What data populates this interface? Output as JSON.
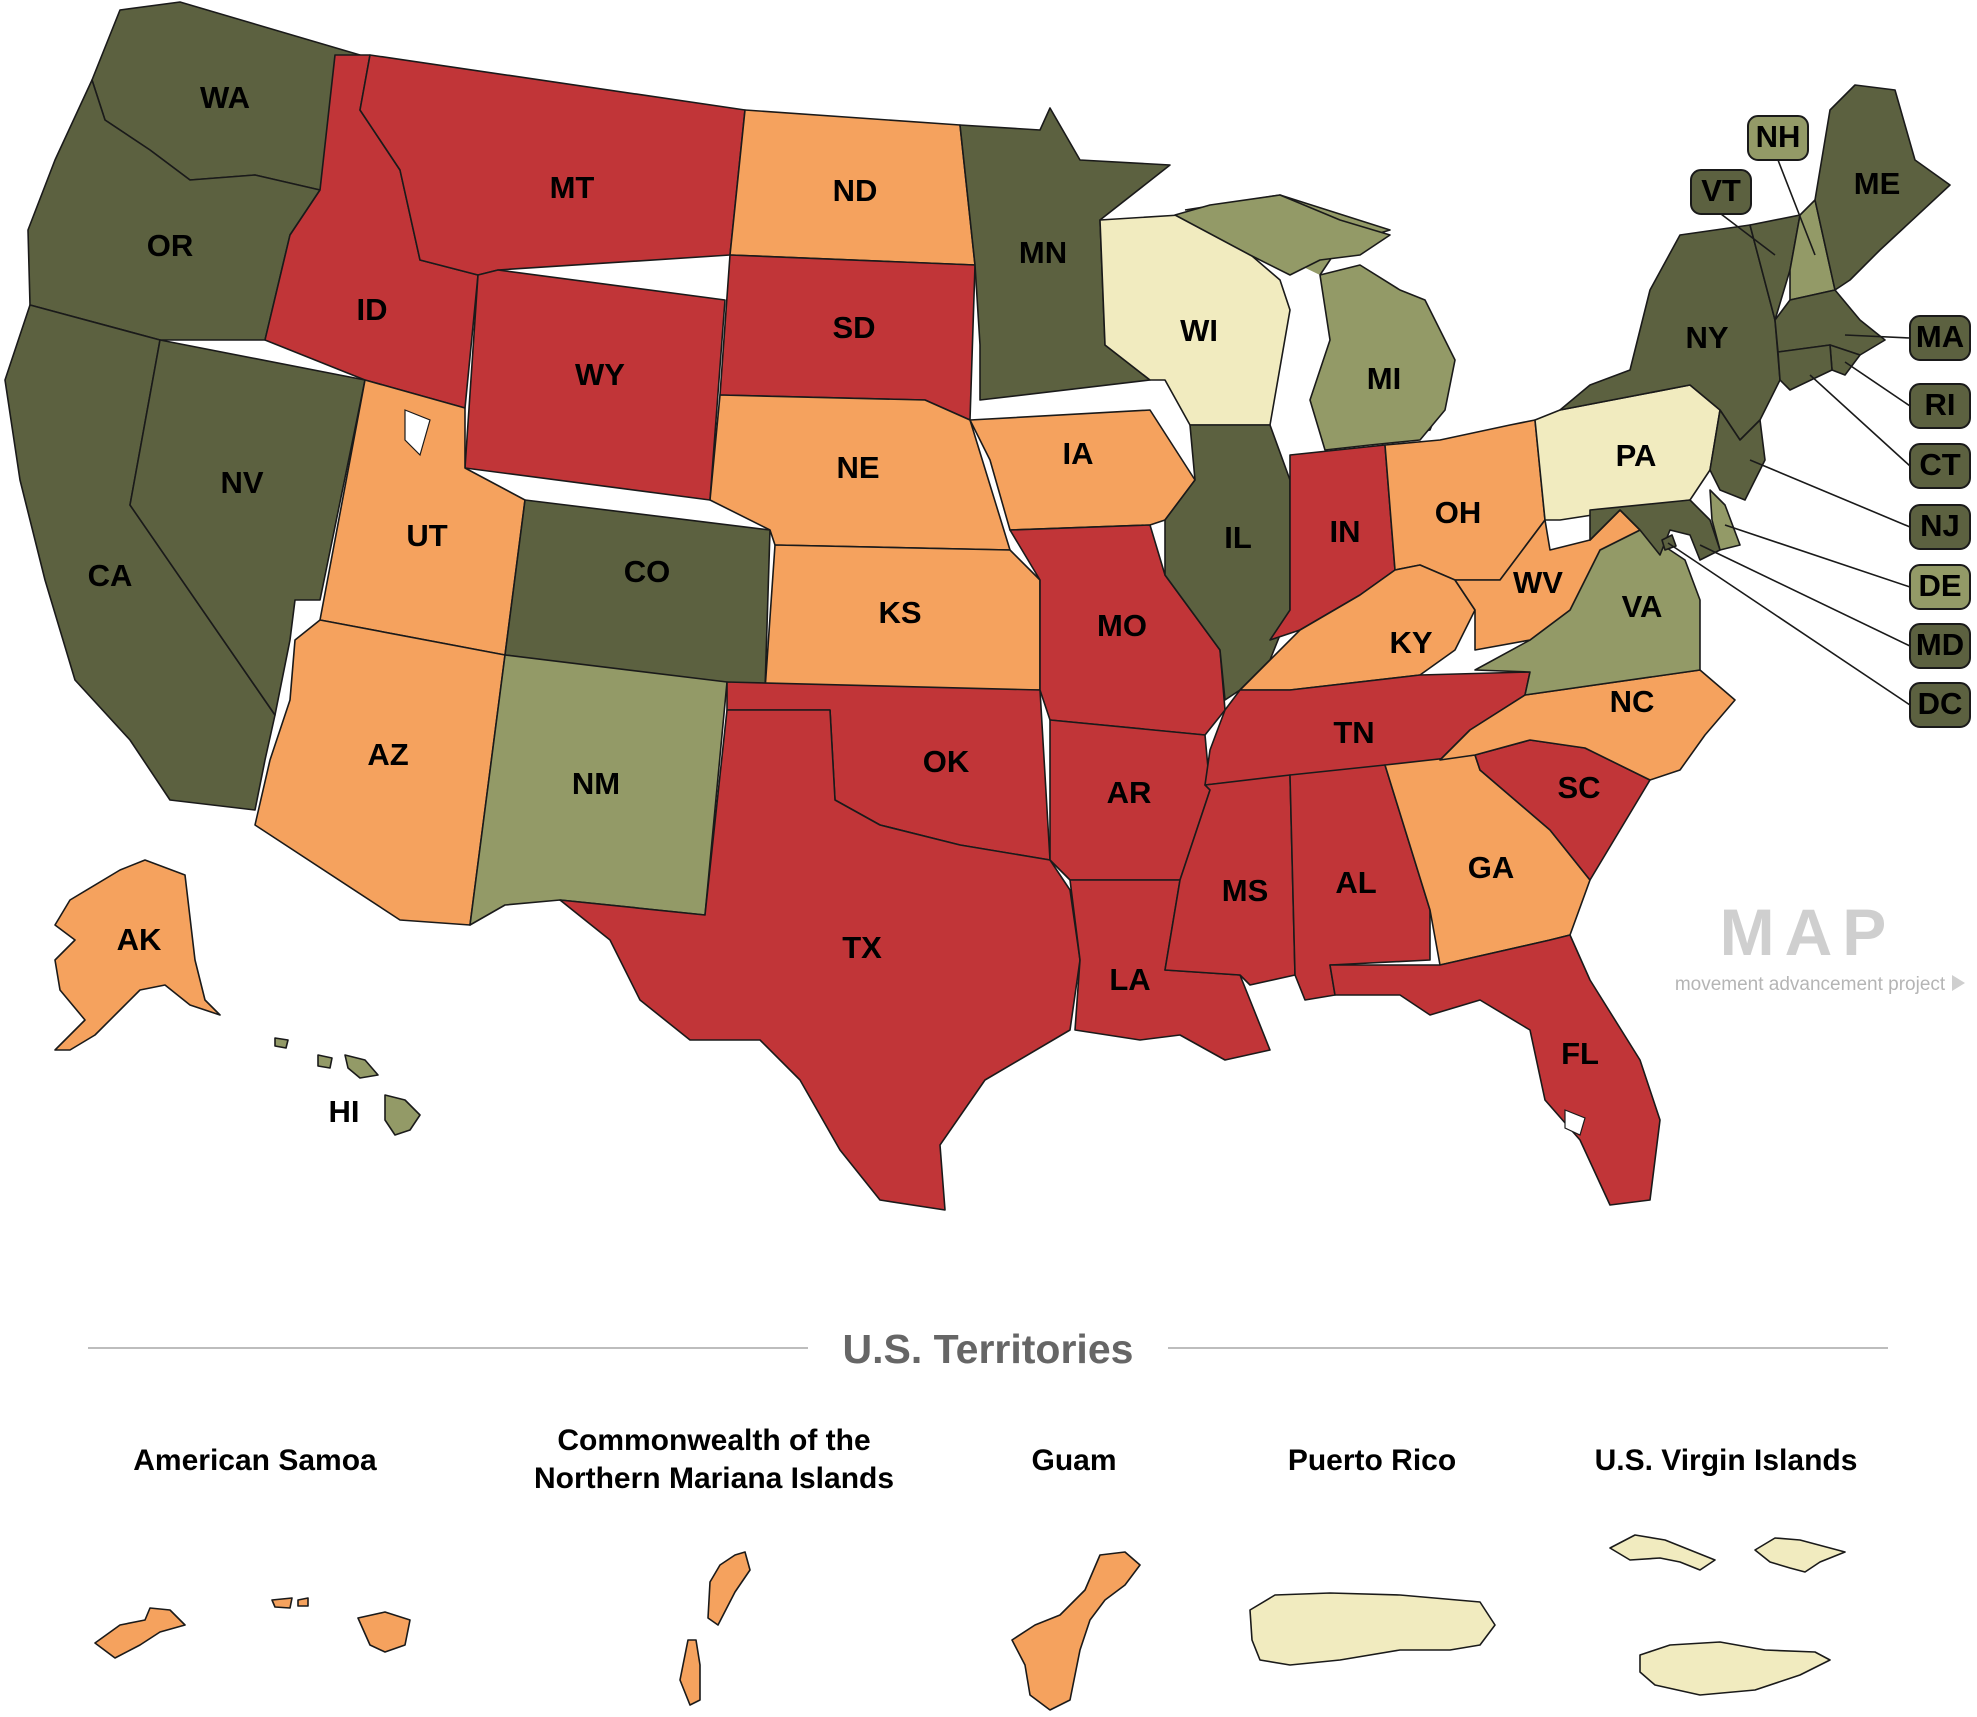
{
  "colors": {
    "level1": "#5c6140",
    "level2": "#939a67",
    "level3": "#f1ebbf",
    "level4": "#f5a25e",
    "level5": "#c13538"
  },
  "states": {
    "WA": {
      "label": "WA",
      "level": "level1"
    },
    "OR": {
      "label": "OR",
      "level": "level1"
    },
    "CA": {
      "label": "CA",
      "level": "level1"
    },
    "NV": {
      "label": "NV",
      "level": "level1"
    },
    "ID": {
      "label": "ID",
      "level": "level5"
    },
    "MT": {
      "label": "MT",
      "level": "level5"
    },
    "WY": {
      "label": "WY",
      "level": "level5"
    },
    "UT": {
      "label": "UT",
      "level": "level4"
    },
    "AZ": {
      "label": "AZ",
      "level": "level4"
    },
    "CO": {
      "label": "CO",
      "level": "level1"
    },
    "NM": {
      "label": "NM",
      "level": "level2"
    },
    "ND": {
      "label": "ND",
      "level": "level4"
    },
    "SD": {
      "label": "SD",
      "level": "level5"
    },
    "NE": {
      "label": "NE",
      "level": "level4"
    },
    "KS": {
      "label": "KS",
      "level": "level4"
    },
    "OK": {
      "label": "OK",
      "level": "level5"
    },
    "TX": {
      "label": "TX",
      "level": "level5"
    },
    "MN": {
      "label": "MN",
      "level": "level1"
    },
    "IA": {
      "label": "IA",
      "level": "level4"
    },
    "MO": {
      "label": "MO",
      "level": "level5"
    },
    "AR": {
      "label": "AR",
      "level": "level5"
    },
    "LA": {
      "label": "LA",
      "level": "level5"
    },
    "WI": {
      "label": "WI",
      "level": "level3"
    },
    "IL": {
      "label": "IL",
      "level": "level1"
    },
    "MI": {
      "label": "MI",
      "level": "level2"
    },
    "IN": {
      "label": "IN",
      "level": "level5"
    },
    "OH": {
      "label": "OH",
      "level": "level4"
    },
    "KY": {
      "label": "KY",
      "level": "level4"
    },
    "TN": {
      "label": "TN",
      "level": "level5"
    },
    "MS": {
      "label": "MS",
      "level": "level5"
    },
    "AL": {
      "label": "AL",
      "level": "level5"
    },
    "GA": {
      "label": "GA",
      "level": "level4"
    },
    "FL": {
      "label": "FL",
      "level": "level5"
    },
    "SC": {
      "label": "SC",
      "level": "level5"
    },
    "NC": {
      "label": "NC",
      "level": "level4"
    },
    "VA": {
      "label": "VA",
      "level": "level2"
    },
    "WV": {
      "label": "WV",
      "level": "level4"
    },
    "PA": {
      "label": "PA",
      "level": "level3"
    },
    "NY": {
      "label": "NY",
      "level": "level1"
    },
    "VT": {
      "label": "VT",
      "level": "level1"
    },
    "NH": {
      "label": "NH",
      "level": "level2"
    },
    "ME": {
      "label": "ME",
      "level": "level1"
    },
    "MA": {
      "label": "MA",
      "level": "level1"
    },
    "RI": {
      "label": "RI",
      "level": "level1"
    },
    "CT": {
      "label": "CT",
      "level": "level1"
    },
    "NJ": {
      "label": "NJ",
      "level": "level1"
    },
    "DE": {
      "label": "DE",
      "level": "level2"
    },
    "MD": {
      "label": "MD",
      "level": "level1"
    },
    "DC": {
      "label": "DC",
      "level": "level1"
    },
    "AK": {
      "label": "AK",
      "level": "level4"
    },
    "HI": {
      "label": "HI",
      "level": "level2"
    }
  },
  "territories_title": "U.S. Territories",
  "territories": {
    "american_samoa": {
      "line1": "American Samoa",
      "line2": "",
      "level": "level4"
    },
    "cnmi": {
      "line1": "Commonwealth of the",
      "line2": "Northern Mariana Islands",
      "level": "level4"
    },
    "guam": {
      "line1": "Guam",
      "line2": "",
      "level": "level4"
    },
    "puerto_rico": {
      "line1": "Puerto Rico",
      "line2": "",
      "level": "level3"
    },
    "usvi": {
      "line1": "U.S. Virgin Islands",
      "line2": "",
      "level": "level3"
    }
  },
  "brand": {
    "logo": "MAP",
    "tagline": "movement advancement project"
  }
}
